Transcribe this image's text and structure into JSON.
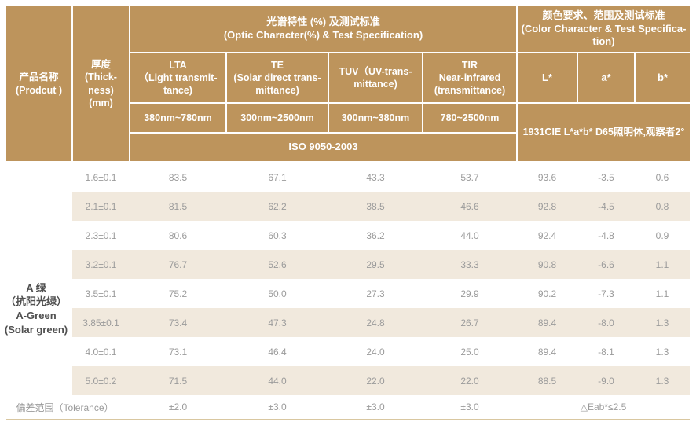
{
  "colors": {
    "header_bg": "#bd945c",
    "header_text": "#ffffff",
    "row_alt_bg": "#f1e9dd",
    "data_text": "#9b9b9b",
    "product_text": "#4f4f4f",
    "bottom_rule": "#d9c7a0"
  },
  "header": {
    "product_col": "产品名称\n(Prodcut )",
    "thickness_col": "厚度\n(Thick-\nness)\n(mm)",
    "optic_group": "光谱特性 (%) 及测试标准\n(Optic Character(%) & Test Specification)",
    "color_group": "颜色要求、范围及测试标准\n(Color Character & Test Specifica-\ntion)",
    "lta_col": "LTA\n（Light transmit-\ntance)",
    "te_col": "TE\n(Solar direct trans-\nmittance)",
    "tuv_col": "TUV（UV-trans-\nmittance)",
    "tir_col": "TIR\nNear-infrared\n(transmittance)",
    "l_col": "L*",
    "a_col": "a*",
    "b_col": "b*",
    "lta_range": "380nm~780nm",
    "te_range": "300nm~2500nm",
    "tuv_range": "300nm~380nm",
    "tir_range": "780~2500nm",
    "iso_standard": "ISO 9050-2003",
    "cie_standard": "1931CIE L*a*b*  D65照明体,观察者2°"
  },
  "product": {
    "name": "A 绿\n（抗阳光绿）\nA-Green\n(Solar green)"
  },
  "rows": [
    {
      "thickness": "1.6±0.1",
      "lta": "83.5",
      "te": "67.1",
      "tuv": "43.3",
      "tir": "53.7",
      "l": "93.6",
      "a": "-3.5",
      "b": "0.6"
    },
    {
      "thickness": "2.1±0.1",
      "lta": "81.5",
      "te": "62.2",
      "tuv": "38.5",
      "tir": "46.6",
      "l": "92.8",
      "a": "-4.5",
      "b": "0.8"
    },
    {
      "thickness": "2.3±0.1",
      "lta": "80.6",
      "te": "60.3",
      "tuv": "36.2",
      "tir": "44.0",
      "l": "92.4",
      "a": "-4.8",
      "b": "0.9"
    },
    {
      "thickness": "3.2±0.1",
      "lta": "76.7",
      "te": "52.6",
      "tuv": "29.5",
      "tir": "33.3",
      "l": "90.8",
      "a": "-6.6",
      "b": "1.1"
    },
    {
      "thickness": "3.5±0.1",
      "lta": "75.2",
      "te": "50.0",
      "tuv": "27.3",
      "tir": "29.9",
      "l": "90.2",
      "a": "-7.3",
      "b": "1.1"
    },
    {
      "thickness": "3.85±0.1",
      "lta": "73.4",
      "te": "47.3",
      "tuv": "24.8",
      "tir": "26.7",
      "l": "89.4",
      "a": "-8.0",
      "b": "1.3"
    },
    {
      "thickness": "4.0±0.1",
      "lta": "73.1",
      "te": "46.4",
      "tuv": "24.0",
      "tir": "25.0",
      "l": "89.4",
      "a": "-8.1",
      "b": "1.3"
    },
    {
      "thickness": "5.0±0.2",
      "lta": "71.5",
      "te": "44.0",
      "tuv": "22.0",
      "tir": "22.0",
      "l": "88.5",
      "a": "-9.0",
      "b": "1.3"
    }
  ],
  "footer": {
    "label": "偏差范围（Tolerance）",
    "lta": "±2.0",
    "te": "±3.0",
    "tuv": "±3.0",
    "tir": "±3.0",
    "eab": "△Eab*≤2.5"
  }
}
